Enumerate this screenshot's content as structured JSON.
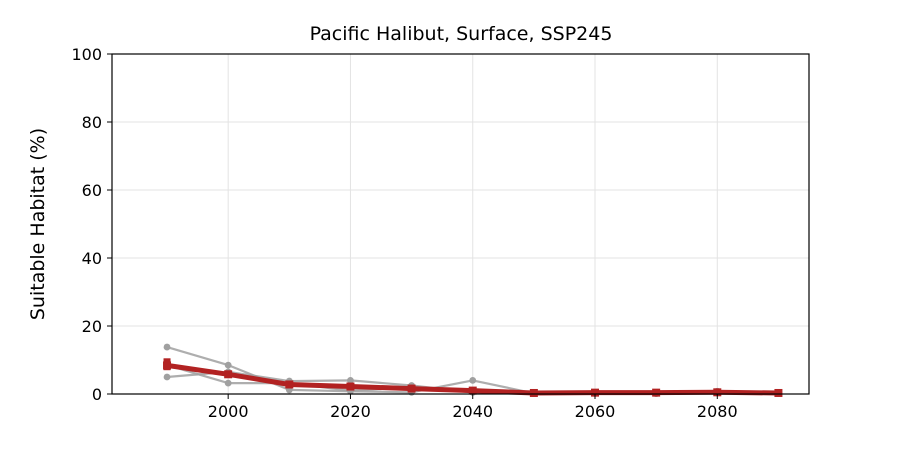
{
  "chart_data": {
    "type": "line",
    "title": "Pacific Halibut, Surface, SSP245",
    "xlabel": "",
    "ylabel": "Suitable Habitat (%)",
    "xlim": [
      1981,
      2095
    ],
    "ylim": [
      0,
      100
    ],
    "xticks": [
      2000,
      2020,
      2040,
      2060,
      2080
    ],
    "yticks": [
      0,
      20,
      40,
      60,
      80,
      100
    ],
    "grid": true,
    "x": [
      1990,
      2000,
      2010,
      2020,
      2030,
      2040,
      2050,
      2060,
      2070,
      2080,
      2090
    ],
    "series": [
      {
        "role": "member",
        "color": "#a0a0a0",
        "values": [
          13.8,
          8.5,
          1.2,
          0.8,
          0.5,
          4.0,
          0.2,
          0.2,
          0.1,
          0.8,
          0.2
        ]
      },
      {
        "role": "member",
        "color": "#a0a0a0",
        "values": [
          5.0,
          6.5,
          3.8,
          4.0,
          2.5,
          0.5,
          0.1,
          0.3,
          0.3,
          0.4,
          0.1
        ]
      },
      {
        "role": "member",
        "color": "#a0a0a0",
        "values": [
          8.5,
          3.2,
          3.2,
          1.0,
          2.0,
          0.5,
          0.1,
          0.2,
          0.2,
          0.3,
          0.1
        ]
      },
      {
        "role": "mean",
        "color": "#b22222",
        "values": [
          8.4,
          5.8,
          2.8,
          2.2,
          1.6,
          1.0,
          0.3,
          0.4,
          0.4,
          0.5,
          0.3
        ]
      }
    ],
    "mean_range": {
      "color": "#b22222",
      "low": 7.0,
      "high": 10.5
    }
  }
}
